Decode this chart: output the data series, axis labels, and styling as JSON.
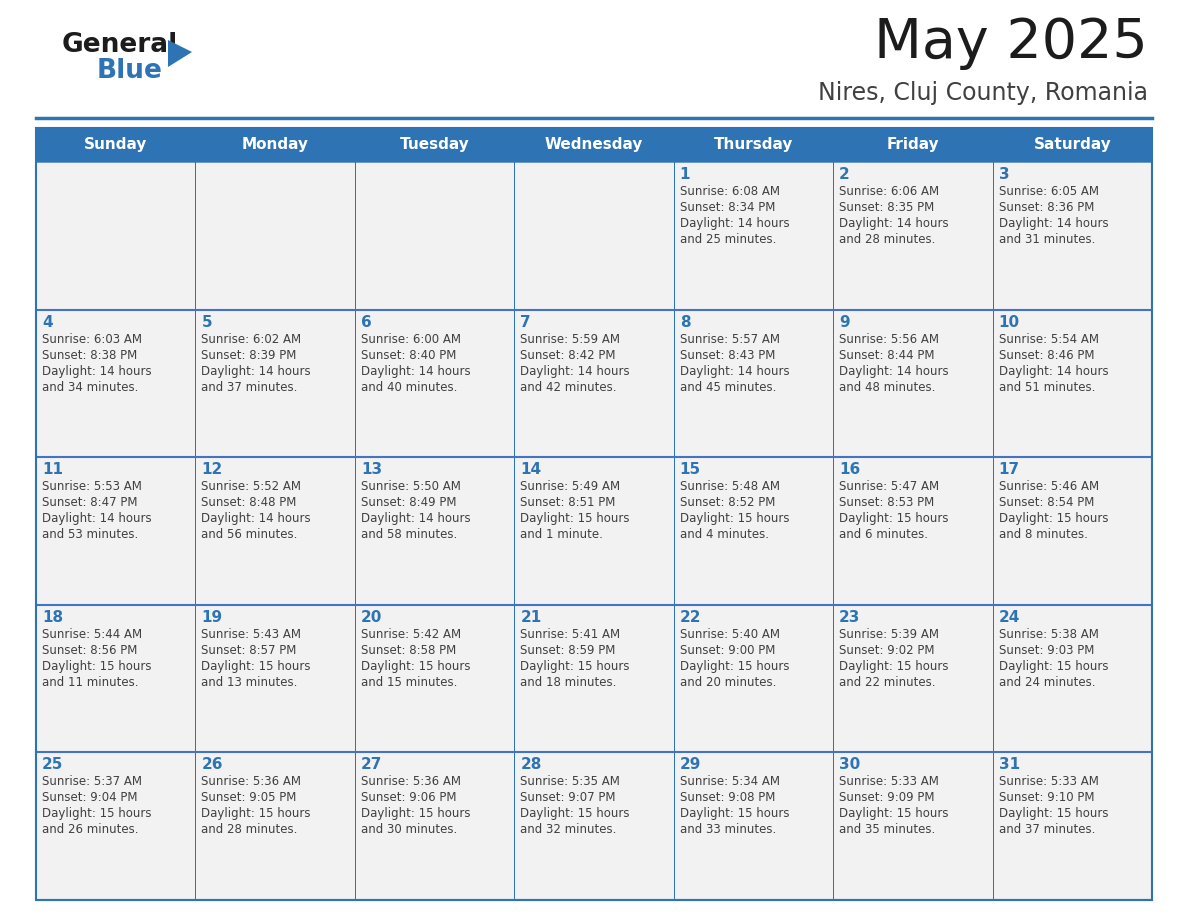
{
  "title": "May 2025",
  "subtitle": "Nires, Cluj County, Romania",
  "header_color": "#2E74B5",
  "header_text_color": "#FFFFFF",
  "cell_bg_color": "#F2F2F2",
  "day_number_color": "#2E74B5",
  "text_color": "#404040",
  "border_color": "#2E74B5",
  "row_sep_color": "#4472C4",
  "days_of_week": [
    "Sunday",
    "Monday",
    "Tuesday",
    "Wednesday",
    "Thursday",
    "Friday",
    "Saturday"
  ],
  "weeks": [
    [
      {
        "day": "",
        "sunrise": "",
        "sunset": "",
        "daylight": ""
      },
      {
        "day": "",
        "sunrise": "",
        "sunset": "",
        "daylight": ""
      },
      {
        "day": "",
        "sunrise": "",
        "sunset": "",
        "daylight": ""
      },
      {
        "day": "",
        "sunrise": "",
        "sunset": "",
        "daylight": ""
      },
      {
        "day": "1",
        "sunrise": "Sunrise: 6:08 AM",
        "sunset": "Sunset: 8:34 PM",
        "daylight": "Daylight: 14 hours\nand 25 minutes."
      },
      {
        "day": "2",
        "sunrise": "Sunrise: 6:06 AM",
        "sunset": "Sunset: 8:35 PM",
        "daylight": "Daylight: 14 hours\nand 28 minutes."
      },
      {
        "day": "3",
        "sunrise": "Sunrise: 6:05 AM",
        "sunset": "Sunset: 8:36 PM",
        "daylight": "Daylight: 14 hours\nand 31 minutes."
      }
    ],
    [
      {
        "day": "4",
        "sunrise": "Sunrise: 6:03 AM",
        "sunset": "Sunset: 8:38 PM",
        "daylight": "Daylight: 14 hours\nand 34 minutes."
      },
      {
        "day": "5",
        "sunrise": "Sunrise: 6:02 AM",
        "sunset": "Sunset: 8:39 PM",
        "daylight": "Daylight: 14 hours\nand 37 minutes."
      },
      {
        "day": "6",
        "sunrise": "Sunrise: 6:00 AM",
        "sunset": "Sunset: 8:40 PM",
        "daylight": "Daylight: 14 hours\nand 40 minutes."
      },
      {
        "day": "7",
        "sunrise": "Sunrise: 5:59 AM",
        "sunset": "Sunset: 8:42 PM",
        "daylight": "Daylight: 14 hours\nand 42 minutes."
      },
      {
        "day": "8",
        "sunrise": "Sunrise: 5:57 AM",
        "sunset": "Sunset: 8:43 PM",
        "daylight": "Daylight: 14 hours\nand 45 minutes."
      },
      {
        "day": "9",
        "sunrise": "Sunrise: 5:56 AM",
        "sunset": "Sunset: 8:44 PM",
        "daylight": "Daylight: 14 hours\nand 48 minutes."
      },
      {
        "day": "10",
        "sunrise": "Sunrise: 5:54 AM",
        "sunset": "Sunset: 8:46 PM",
        "daylight": "Daylight: 14 hours\nand 51 minutes."
      }
    ],
    [
      {
        "day": "11",
        "sunrise": "Sunrise: 5:53 AM",
        "sunset": "Sunset: 8:47 PM",
        "daylight": "Daylight: 14 hours\nand 53 minutes."
      },
      {
        "day": "12",
        "sunrise": "Sunrise: 5:52 AM",
        "sunset": "Sunset: 8:48 PM",
        "daylight": "Daylight: 14 hours\nand 56 minutes."
      },
      {
        "day": "13",
        "sunrise": "Sunrise: 5:50 AM",
        "sunset": "Sunset: 8:49 PM",
        "daylight": "Daylight: 14 hours\nand 58 minutes."
      },
      {
        "day": "14",
        "sunrise": "Sunrise: 5:49 AM",
        "sunset": "Sunset: 8:51 PM",
        "daylight": "Daylight: 15 hours\nand 1 minute."
      },
      {
        "day": "15",
        "sunrise": "Sunrise: 5:48 AM",
        "sunset": "Sunset: 8:52 PM",
        "daylight": "Daylight: 15 hours\nand 4 minutes."
      },
      {
        "day": "16",
        "sunrise": "Sunrise: 5:47 AM",
        "sunset": "Sunset: 8:53 PM",
        "daylight": "Daylight: 15 hours\nand 6 minutes."
      },
      {
        "day": "17",
        "sunrise": "Sunrise: 5:46 AM",
        "sunset": "Sunset: 8:54 PM",
        "daylight": "Daylight: 15 hours\nand 8 minutes."
      }
    ],
    [
      {
        "day": "18",
        "sunrise": "Sunrise: 5:44 AM",
        "sunset": "Sunset: 8:56 PM",
        "daylight": "Daylight: 15 hours\nand 11 minutes."
      },
      {
        "day": "19",
        "sunrise": "Sunrise: 5:43 AM",
        "sunset": "Sunset: 8:57 PM",
        "daylight": "Daylight: 15 hours\nand 13 minutes."
      },
      {
        "day": "20",
        "sunrise": "Sunrise: 5:42 AM",
        "sunset": "Sunset: 8:58 PM",
        "daylight": "Daylight: 15 hours\nand 15 minutes."
      },
      {
        "day": "21",
        "sunrise": "Sunrise: 5:41 AM",
        "sunset": "Sunset: 8:59 PM",
        "daylight": "Daylight: 15 hours\nand 18 minutes."
      },
      {
        "day": "22",
        "sunrise": "Sunrise: 5:40 AM",
        "sunset": "Sunset: 9:00 PM",
        "daylight": "Daylight: 15 hours\nand 20 minutes."
      },
      {
        "day": "23",
        "sunrise": "Sunrise: 5:39 AM",
        "sunset": "Sunset: 9:02 PM",
        "daylight": "Daylight: 15 hours\nand 22 minutes."
      },
      {
        "day": "24",
        "sunrise": "Sunrise: 5:38 AM",
        "sunset": "Sunset: 9:03 PM",
        "daylight": "Daylight: 15 hours\nand 24 minutes."
      }
    ],
    [
      {
        "day": "25",
        "sunrise": "Sunrise: 5:37 AM",
        "sunset": "Sunset: 9:04 PM",
        "daylight": "Daylight: 15 hours\nand 26 minutes."
      },
      {
        "day": "26",
        "sunrise": "Sunrise: 5:36 AM",
        "sunset": "Sunset: 9:05 PM",
        "daylight": "Daylight: 15 hours\nand 28 minutes."
      },
      {
        "day": "27",
        "sunrise": "Sunrise: 5:36 AM",
        "sunset": "Sunset: 9:06 PM",
        "daylight": "Daylight: 15 hours\nand 30 minutes."
      },
      {
        "day": "28",
        "sunrise": "Sunrise: 5:35 AM",
        "sunset": "Sunset: 9:07 PM",
        "daylight": "Daylight: 15 hours\nand 32 minutes."
      },
      {
        "day": "29",
        "sunrise": "Sunrise: 5:34 AM",
        "sunset": "Sunset: 9:08 PM",
        "daylight": "Daylight: 15 hours\nand 33 minutes."
      },
      {
        "day": "30",
        "sunrise": "Sunrise: 5:33 AM",
        "sunset": "Sunset: 9:09 PM",
        "daylight": "Daylight: 15 hours\nand 35 minutes."
      },
      {
        "day": "31",
        "sunrise": "Sunrise: 5:33 AM",
        "sunset": "Sunset: 9:10 PM",
        "daylight": "Daylight: 15 hours\nand 37 minutes."
      }
    ]
  ]
}
